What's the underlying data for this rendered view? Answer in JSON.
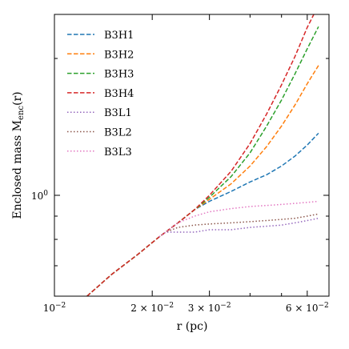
{
  "chart_data": {
    "type": "line",
    "xlabel": "r (pc)",
    "ylabel": "Enclosed mass M",
    "ylabel_sub": "enc",
    "ylabel_tail": "(r)",
    "xscale": "log",
    "yscale": "log",
    "xlim": [
      0.01,
      0.07
    ],
    "ylim": [
      0.6,
      2.5
    ],
    "grid": false,
    "legend_position": "top-left",
    "x_ticks": [
      {
        "value": 0.01,
        "label": "10",
        "exp": "−2"
      },
      {
        "value": 0.02,
        "label": "2 × 10",
        "exp": "−2"
      },
      {
        "value": 0.03,
        "label": "3 × 10",
        "exp": "−2"
      },
      {
        "value": 0.06,
        "label": "6 × 10",
        "exp": "−2"
      }
    ],
    "y_ticks": [
      {
        "value": 1.0,
        "label": "10",
        "exp": "0"
      }
    ],
    "series": [
      {
        "name": "B3H1",
        "color": "#1f77b4",
        "dash": "dashed",
        "x": [
          0.0126,
          0.015,
          0.018,
          0.021,
          0.024,
          0.027,
          0.03,
          0.035,
          0.04,
          0.045,
          0.05,
          0.055,
          0.06,
          0.065
        ],
        "y": [
          0.6,
          0.67,
          0.74,
          0.81,
          0.87,
          0.93,
          0.97,
          1.02,
          1.07,
          1.11,
          1.16,
          1.22,
          1.29,
          1.37
        ]
      },
      {
        "name": "B3H2",
        "color": "#ff7f0e",
        "dash": "dashed",
        "x": [
          0.0126,
          0.015,
          0.018,
          0.021,
          0.024,
          0.027,
          0.03,
          0.035,
          0.04,
          0.045,
          0.05,
          0.055,
          0.06,
          0.065
        ],
        "y": [
          0.6,
          0.67,
          0.74,
          0.81,
          0.87,
          0.93,
          0.98,
          1.06,
          1.16,
          1.28,
          1.42,
          1.58,
          1.76,
          1.93
        ]
      },
      {
        "name": "B3H3",
        "color": "#2ca02c",
        "dash": "dashed",
        "x": [
          0.0126,
          0.015,
          0.018,
          0.021,
          0.024,
          0.027,
          0.03,
          0.035,
          0.04,
          0.045,
          0.05,
          0.055,
          0.06,
          0.065
        ],
        "y": [
          0.6,
          0.67,
          0.74,
          0.81,
          0.87,
          0.93,
          0.99,
          1.1,
          1.24,
          1.42,
          1.62,
          1.85,
          2.1,
          2.35
        ]
      },
      {
        "name": "B3H4",
        "color": "#d62728",
        "dash": "dashed",
        "x": [
          0.0126,
          0.015,
          0.018,
          0.021,
          0.024,
          0.027,
          0.03,
          0.035,
          0.04,
          0.045,
          0.05,
          0.055,
          0.06,
          0.065
        ],
        "y": [
          0.6,
          0.67,
          0.74,
          0.81,
          0.87,
          0.93,
          1.0,
          1.13,
          1.3,
          1.51,
          1.75,
          2.02,
          2.34,
          2.62
        ]
      },
      {
        "name": "B3L1",
        "color": "#9467bd",
        "dash": "dotted",
        "x": [
          0.021,
          0.022,
          0.024,
          0.027,
          0.03,
          0.035,
          0.04,
          0.045,
          0.05,
          0.055,
          0.06,
          0.065
        ],
        "y": [
          0.81,
          0.83,
          0.83,
          0.83,
          0.84,
          0.84,
          0.85,
          0.855,
          0.86,
          0.87,
          0.88,
          0.89
        ]
      },
      {
        "name": "B3L2",
        "color": "#8c564b",
        "dash": "dotted",
        "x": [
          0.021,
          0.022,
          0.024,
          0.027,
          0.03,
          0.035,
          0.04,
          0.045,
          0.05,
          0.055,
          0.06,
          0.065
        ],
        "y": [
          0.81,
          0.83,
          0.85,
          0.86,
          0.865,
          0.87,
          0.875,
          0.88,
          0.885,
          0.89,
          0.9,
          0.91
        ]
      },
      {
        "name": "B3L3",
        "color": "#e377c2",
        "dash": "dotted",
        "x": [
          0.021,
          0.022,
          0.024,
          0.027,
          0.03,
          0.035,
          0.04,
          0.045,
          0.05,
          0.055,
          0.06,
          0.065
        ],
        "y": [
          0.81,
          0.83,
          0.87,
          0.9,
          0.92,
          0.935,
          0.945,
          0.95,
          0.955,
          0.96,
          0.965,
          0.97
        ]
      }
    ]
  }
}
